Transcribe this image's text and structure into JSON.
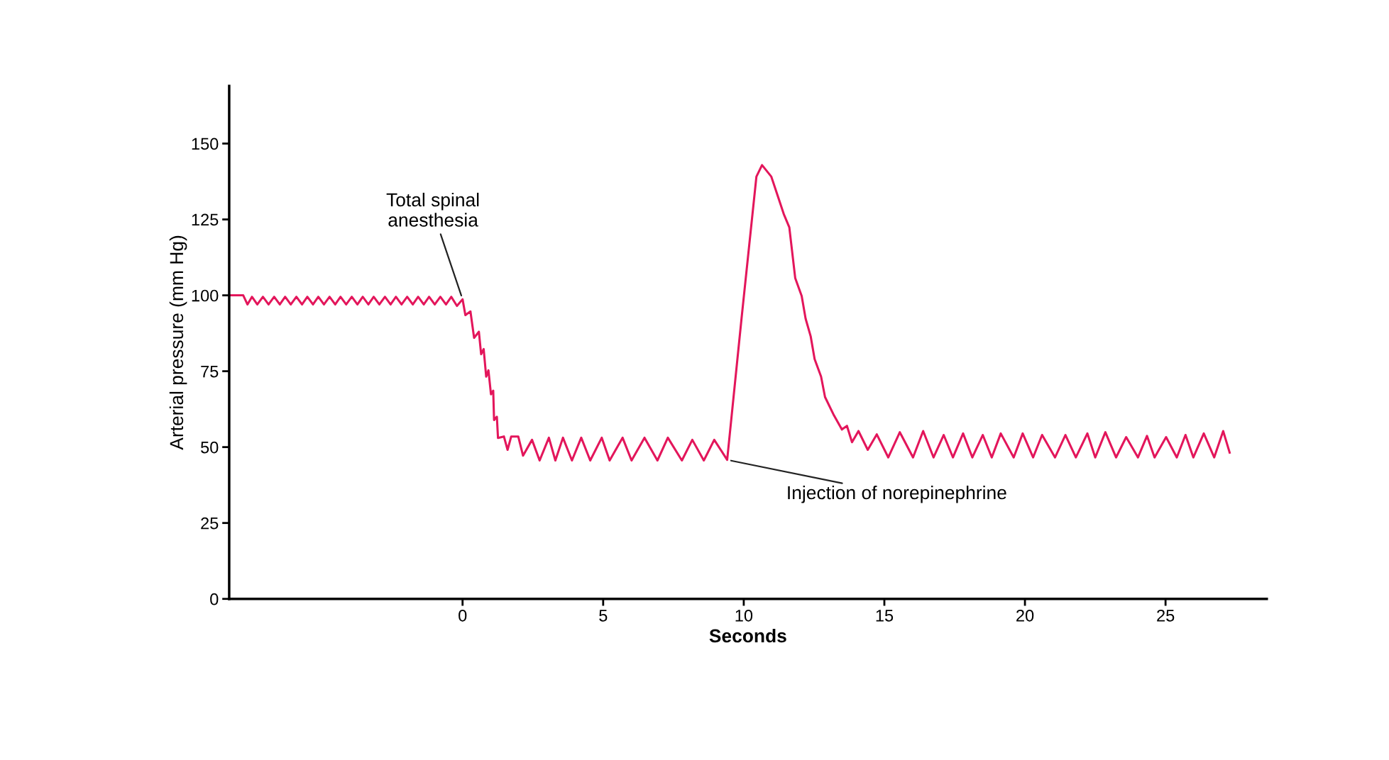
{
  "chart_data": {
    "type": "line",
    "xlabel": "Seconds",
    "ylabel": "Arterial pressure (mm Hg)",
    "xlim": [
      -8.3,
      28.6
    ],
    "ylim": [
      0,
      169
    ],
    "xticks": [
      0,
      5,
      10,
      15,
      20,
      25
    ],
    "yticks": [
      0,
      25,
      50,
      75,
      100,
      125,
      150
    ],
    "grid": false,
    "marker": "none",
    "line_style": "solid",
    "series": [
      {
        "color": "#e3165b",
        "x": [
          -8.26,
          -7.8,
          -7.65,
          -7.49,
          -7.3,
          -7.1,
          -6.9,
          -6.7,
          -6.5,
          -6.31,
          -6.11,
          -5.91,
          -5.71,
          -5.52,
          -5.32,
          -5.13,
          -4.93,
          -4.73,
          -4.53,
          -4.34,
          -4.14,
          -3.94,
          -3.74,
          -3.55,
          -3.35,
          -3.16,
          -2.96,
          -2.76,
          -2.56,
          -2.37,
          -2.17,
          -1.97,
          -1.77,
          -1.58,
          -1.38,
          -1.19,
          -0.99,
          -0.79,
          -0.59,
          -0.4,
          -0.2,
          0.0,
          0.1,
          0.28,
          0.41,
          0.58,
          0.66,
          0.75,
          0.84,
          0.92,
          1.01,
          1.09,
          1.12,
          1.22,
          1.26,
          1.47,
          1.6,
          1.73,
          1.98,
          2.15,
          2.47,
          2.74,
          3.07,
          3.3,
          3.57,
          3.89,
          4.22,
          4.54,
          4.95,
          5.23,
          5.69,
          6.01,
          6.47,
          6.93,
          7.3,
          7.8,
          8.17,
          8.58,
          8.95,
          9.41,
          9.92,
          10.45,
          10.65,
          10.98,
          11.25,
          11.43,
          11.62,
          11.83,
          12.06,
          12.2,
          12.38,
          12.52,
          12.75,
          12.89,
          13.21,
          13.49,
          13.67,
          13.85,
          14.08,
          14.41,
          14.73,
          15.14,
          15.55,
          16.02,
          16.38,
          16.75,
          17.11,
          17.44,
          17.8,
          18.13,
          18.5,
          18.82,
          19.14,
          19.6,
          19.92,
          20.29,
          20.61,
          21.07,
          21.44,
          21.81,
          22.22,
          22.5,
          22.86,
          23.24,
          23.6,
          24.02,
          24.34,
          24.61,
          25.02,
          25.4,
          25.71,
          25.99,
          26.36,
          26.73,
          27.05,
          27.28
        ],
        "values": [
          100,
          100,
          97,
          99.5,
          97,
          99.5,
          97,
          99.5,
          97,
          99.5,
          97,
          99.5,
          97,
          99.5,
          97,
          99.5,
          97,
          99.5,
          97,
          99.5,
          97,
          99.5,
          97,
          99.5,
          97,
          99.5,
          97,
          99.5,
          97,
          99.5,
          97,
          99.5,
          97,
          99.5,
          97,
          99.5,
          97,
          99.5,
          97,
          99.5,
          96.5,
          98.7,
          93.5,
          94.7,
          86,
          88,
          80.6,
          82.3,
          73.2,
          75.3,
          67.4,
          68.6,
          58.9,
          60,
          53,
          53.5,
          49.1,
          53.5,
          53.5,
          47.2,
          52.4,
          45.6,
          53.1,
          45.6,
          53.1,
          45.6,
          53.1,
          45.6,
          53.1,
          45.6,
          53.1,
          45.6,
          53.1,
          45.6,
          53.1,
          45.6,
          52.4,
          45.6,
          52.4,
          45.8,
          92.3,
          139.1,
          142.9,
          139.1,
          131.6,
          126.6,
          122.4,
          105.7,
          99.8,
          92.3,
          86.5,
          79,
          73.2,
          66.5,
          60.4,
          55.8,
          57,
          51.6,
          55.3,
          49.1,
          54.2,
          46.6,
          54.9,
          46.6,
          55.3,
          46.6,
          54,
          46.6,
          54.5,
          46.6,
          54,
          46.6,
          54.5,
          46.6,
          54.5,
          46.6,
          54,
          46.6,
          54,
          46.6,
          54.5,
          46.6,
          54.9,
          46.6,
          53.3,
          46.6,
          53.7,
          46.6,
          53.3,
          46.6,
          54,
          46.6,
          54.5,
          46.6,
          55.3,
          48.2
        ]
      }
    ],
    "annotations": [
      {
        "text": "Total spinal\nanesthesia",
        "x": 0.0,
        "y": 98.7
      },
      {
        "text": "Injection of norepinephrine",
        "x": 9.41,
        "y": 45.8
      }
    ]
  }
}
